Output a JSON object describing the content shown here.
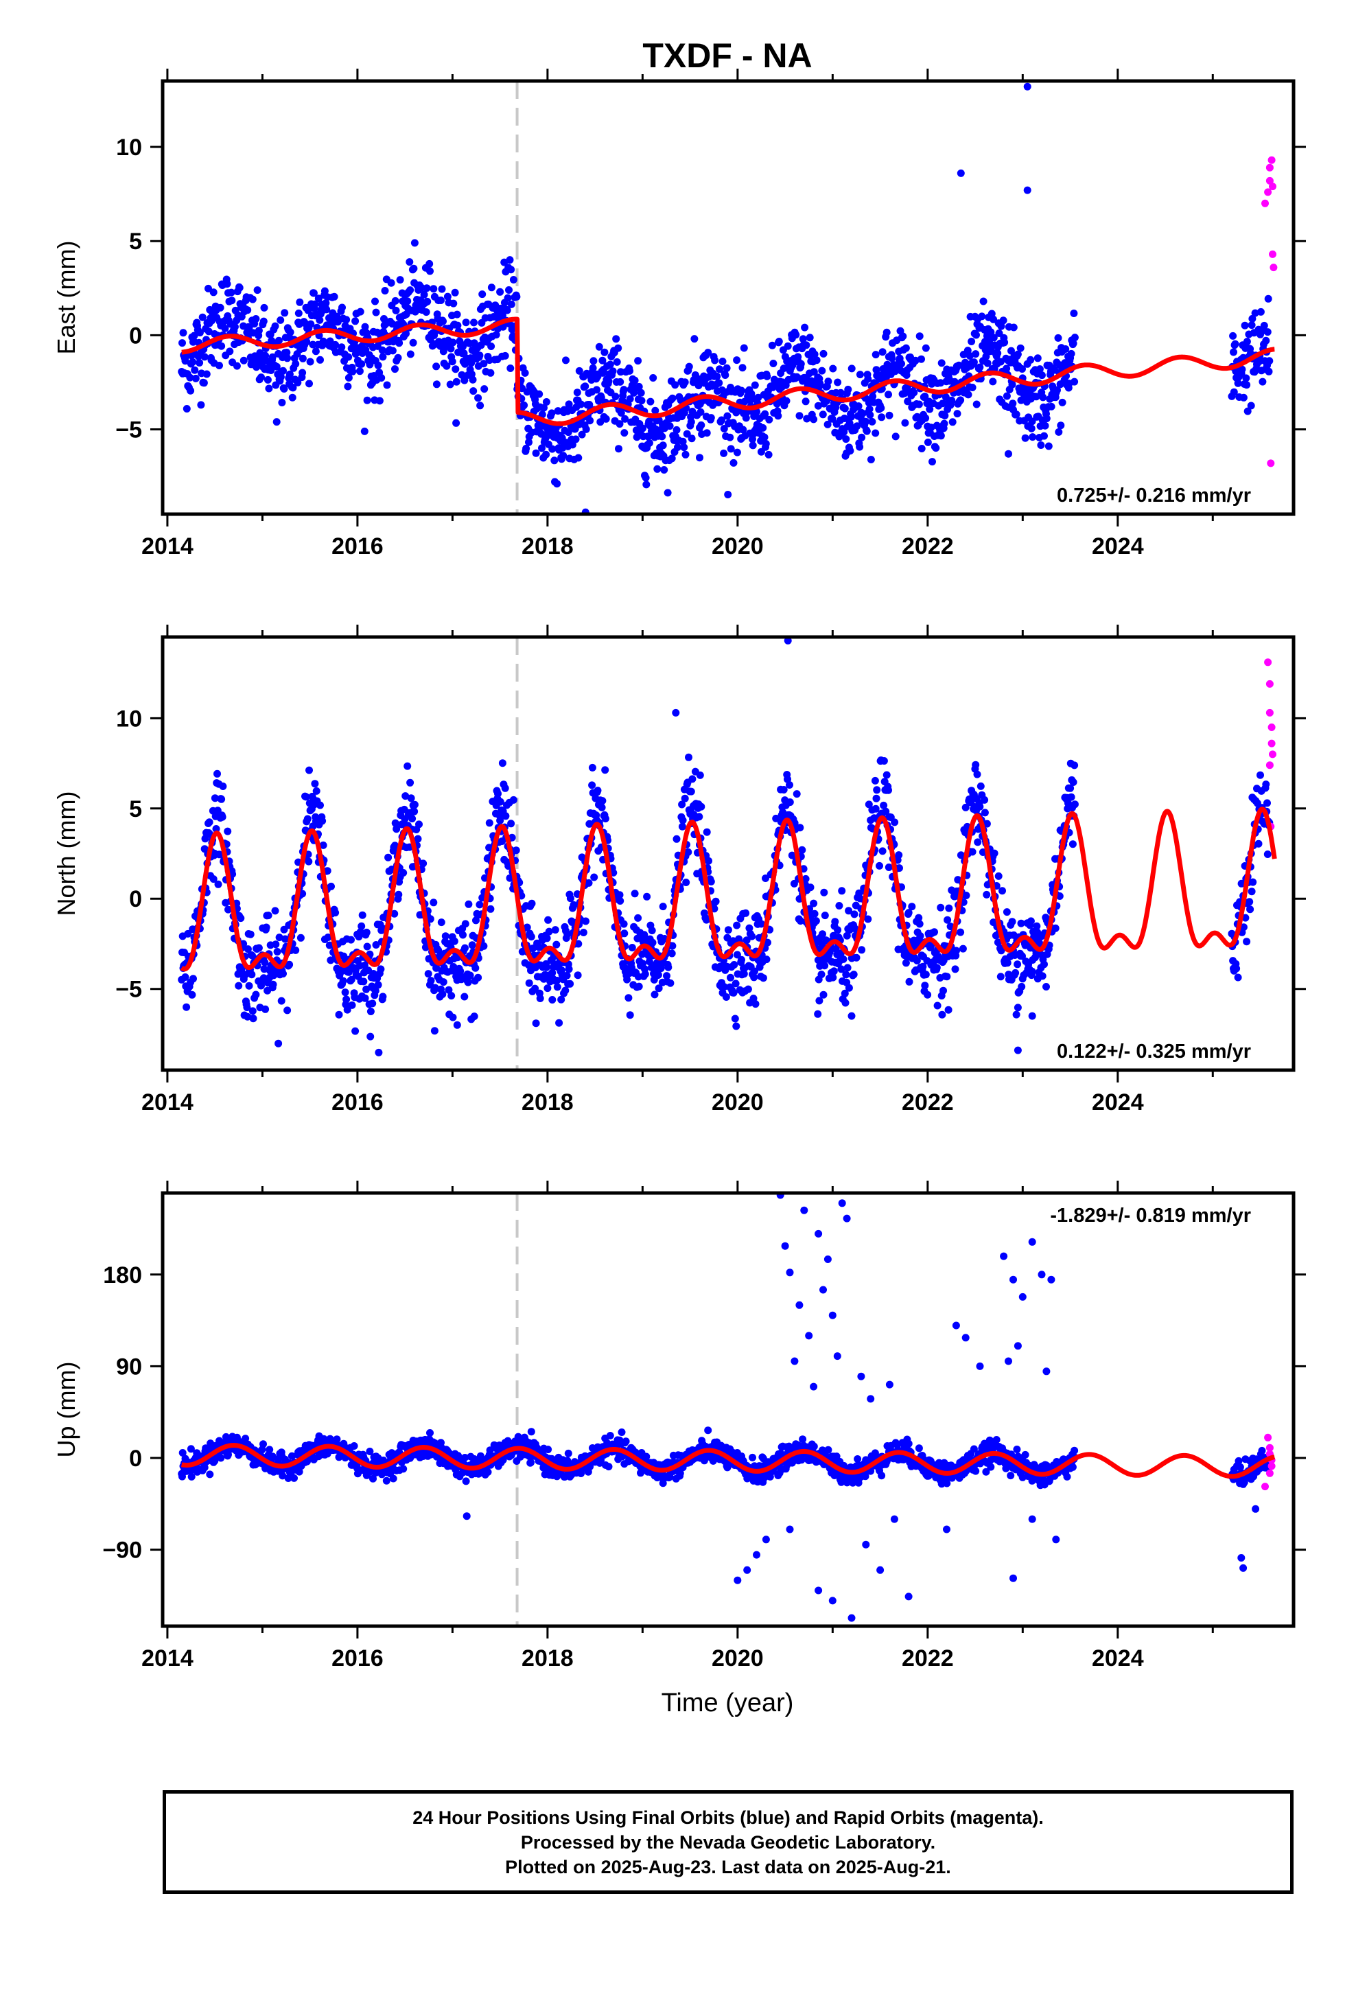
{
  "title": "TXDF - NA",
  "x_axis_title": "Time (year)",
  "footer_lines": [
    "24 Hour Positions Using Final Orbits (blue) and Rapid Orbits (magenta).",
    "Processed by the Nevada Geodetic Laboratory.",
    "Plotted on 2025-Aug-23. Last data on 2025-Aug-21."
  ],
  "colors": {
    "final_orbits": "#0000ff",
    "rapid_orbits": "#ff00ff",
    "model_fit": "#ff0000",
    "equipment_change": "#c8c8c8"
  },
  "chart_data": [
    {
      "type": "scatter",
      "name": "east",
      "ylabel": "East (mm)",
      "xlim": [
        2013.95,
        2025.85
      ],
      "ylim": [
        -9.5,
        13.5
      ],
      "xticks": [
        2014,
        2016,
        2018,
        2020,
        2022,
        2024
      ],
      "yticks": [
        -5,
        0,
        5,
        10
      ],
      "ytick_labels": [
        "−5",
        "0",
        "5",
        "10"
      ],
      "equipment_change_year": 2017.68,
      "rate_text": "0.725+/- 0.216 mm/yr",
      "rate_position": "bottom-right",
      "model": {
        "start": 2014.15,
        "end": 2025.65,
        "offset": -0.55,
        "trend": 0.3,
        "annual_amp": 0.35,
        "annual_phase": 0.6,
        "jumps": [
          {
            "year": 2017.68,
            "size": -5.0
          },
          {
            "year": 2017.69,
            "size": 0.0
          }
        ],
        "trend_after_jump": 0.42,
        "end_value": 3.2
      },
      "outliers": [
        {
          "x": 2023.05,
          "y": 13.2
        },
        {
          "x": 2022.35,
          "y": 8.6
        },
        {
          "x": 2023.05,
          "y": 7.7
        },
        {
          "x": 2018.4,
          "y": -9.4
        },
        {
          "x": 2022.85,
          "y": -6.3
        },
        {
          "x": 2015.15,
          "y": -4.6
        },
        {
          "x": 2019.6,
          "y": -6.5
        },
        {
          "x": 2021.45,
          "y": -5.2
        }
      ],
      "rapid_points": [
        {
          "x": 2025.55,
          "y": 7.0
        },
        {
          "x": 2025.58,
          "y": 7.6
        },
        {
          "x": 2025.6,
          "y": 8.2
        },
        {
          "x": 2025.6,
          "y": 8.9
        },
        {
          "x": 2025.62,
          "y": 9.3
        },
        {
          "x": 2025.63,
          "y": 7.9
        },
        {
          "x": 2025.63,
          "y": 4.3
        },
        {
          "x": 2025.64,
          "y": 3.6
        },
        {
          "x": 2025.61,
          "y": -6.8
        }
      ]
    },
    {
      "type": "scatter",
      "name": "north",
      "ylabel": "North (mm)",
      "xlim": [
        2013.95,
        2025.85
      ],
      "ylim": [
        -9.5,
        14.5
      ],
      "xticks": [
        2014,
        2016,
        2018,
        2020,
        2022,
        2024
      ],
      "yticks": [
        -5,
        0,
        5,
        10
      ],
      "ytick_labels": [
        "−5",
        "0",
        "5",
        "10"
      ],
      "equipment_change_year": 2017.68,
      "rate_text": "0.122+/- 0.325 mm/yr",
      "rate_position": "bottom-right",
      "model": {
        "start": 2014.15,
        "end": 2025.65,
        "offset": 1.0,
        "trend": 0.12,
        "annual_amp": 3.4,
        "semi_amp": 1.6,
        "peak_year_fraction": 0.52
      },
      "outliers": [
        {
          "x": 2020.53,
          "y": 14.3
        },
        {
          "x": 2019.35,
          "y": 10.3
        },
        {
          "x": 2017.05,
          "y": -7.0
        },
        {
          "x": 2021.2,
          "y": -6.5
        },
        {
          "x": 2022.95,
          "y": -8.4
        },
        {
          "x": 2023.1,
          "y": -6.5
        },
        {
          "x": 2018.05,
          "y": -5.6
        }
      ],
      "rapid_points": [
        {
          "x": 2025.58,
          "y": 13.1
        },
        {
          "x": 2025.6,
          "y": 11.9
        },
        {
          "x": 2025.6,
          "y": 10.3
        },
        {
          "x": 2025.62,
          "y": 9.5
        },
        {
          "x": 2025.62,
          "y": 8.6
        },
        {
          "x": 2025.63,
          "y": 8.0
        },
        {
          "x": 2025.6,
          "y": 7.4
        },
        {
          "x": 2025.61,
          "y": 4.0
        }
      ]
    },
    {
      "type": "scatter",
      "name": "up",
      "ylabel": "Up (mm)",
      "xlim": [
        2013.95,
        2025.85
      ],
      "ylim": [
        -165,
        260
      ],
      "xticks": [
        2014,
        2016,
        2018,
        2020,
        2022,
        2024
      ],
      "yticks": [
        -90,
        0,
        90,
        180
      ],
      "ytick_labels": [
        "−90",
        "0",
        "90",
        "180"
      ],
      "equipment_change_year": 2017.68,
      "rate_text": "-1.829+/- 0.819 mm/yr",
      "rate_position": "top-right",
      "model": {
        "start": 2014.15,
        "end": 2025.65,
        "offset": 3.0,
        "trend": -1.0,
        "annual_amp": 10.0,
        "peak_year_fraction": 0.7
      },
      "outliers": [
        {
          "x": 2020.45,
          "y": 258
        },
        {
          "x": 2020.5,
          "y": 208
        },
        {
          "x": 2020.55,
          "y": 182
        },
        {
          "x": 2020.7,
          "y": 243
        },
        {
          "x": 2020.85,
          "y": 220
        },
        {
          "x": 2020.95,
          "y": 195
        },
        {
          "x": 2021.1,
          "y": 250
        },
        {
          "x": 2021.15,
          "y": 235
        },
        {
          "x": 2020.65,
          "y": 150
        },
        {
          "x": 2020.75,
          "y": 120
        },
        {
          "x": 2020.9,
          "y": 165
        },
        {
          "x": 2021.0,
          "y": 140
        },
        {
          "x": 2020.6,
          "y": 95
        },
        {
          "x": 2020.8,
          "y": 70
        },
        {
          "x": 2021.05,
          "y": 100
        },
        {
          "x": 2021.3,
          "y": 80
        },
        {
          "x": 2021.4,
          "y": 58
        },
        {
          "x": 2021.6,
          "y": 72
        },
        {
          "x": 2022.3,
          "y": 130
        },
        {
          "x": 2022.4,
          "y": 118
        },
        {
          "x": 2022.55,
          "y": 90
        },
        {
          "x": 2022.8,
          "y": 198
        },
        {
          "x": 2022.9,
          "y": 175
        },
        {
          "x": 2023.0,
          "y": 158
        },
        {
          "x": 2023.1,
          "y": 212
        },
        {
          "x": 2023.2,
          "y": 180
        },
        {
          "x": 2023.3,
          "y": 175
        },
        {
          "x": 2022.95,
          "y": 110
        },
        {
          "x": 2022.85,
          "y": 95
        },
        {
          "x": 2023.25,
          "y": 85
        },
        {
          "x": 2020.0,
          "y": -120
        },
        {
          "x": 2020.1,
          "y": -110
        },
        {
          "x": 2020.2,
          "y": -95
        },
        {
          "x": 2020.3,
          "y": -80
        },
        {
          "x": 2020.55,
          "y": -70
        },
        {
          "x": 2020.85,
          "y": -130
        },
        {
          "x": 2021.0,
          "y": -140
        },
        {
          "x": 2021.2,
          "y": -157
        },
        {
          "x": 2021.5,
          "y": -110
        },
        {
          "x": 2021.8,
          "y": -136
        },
        {
          "x": 2021.35,
          "y": -85
        },
        {
          "x": 2021.65,
          "y": -60
        },
        {
          "x": 2022.2,
          "y": -70
        },
        {
          "x": 2022.9,
          "y": -118
        },
        {
          "x": 2023.1,
          "y": -60
        },
        {
          "x": 2023.35,
          "y": -80
        },
        {
          "x": 2017.15,
          "y": -57
        },
        {
          "x": 2025.3,
          "y": -98
        },
        {
          "x": 2025.32,
          "y": -108
        },
        {
          "x": 2025.45,
          "y": -50
        }
      ],
      "rapid_points": [
        {
          "x": 2025.58,
          "y": 20
        },
        {
          "x": 2025.6,
          "y": 10
        },
        {
          "x": 2025.6,
          "y": 4
        },
        {
          "x": 2025.62,
          "y": -2
        },
        {
          "x": 2025.62,
          "y": -8
        },
        {
          "x": 2025.6,
          "y": -15
        },
        {
          "x": 2025.55,
          "y": -28
        }
      ]
    }
  ]
}
